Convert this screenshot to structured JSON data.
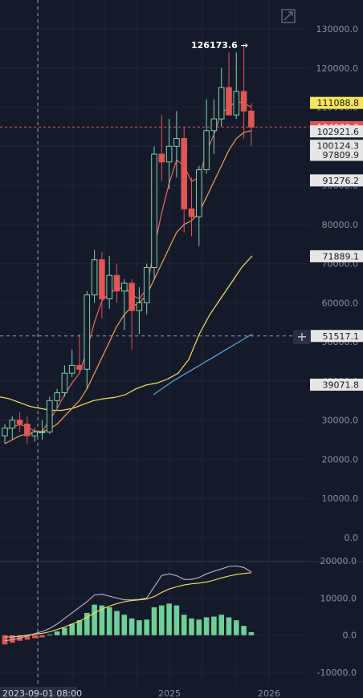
{
  "chart_data": [
    {
      "type": "candlestick",
      "timeframe_note": "",
      "ylim": [
        0,
        135000
      ],
      "y_ticks": [
        "130000.0",
        "120000.0",
        "110000.0",
        "100000.0",
        "90000.0",
        "80000.0",
        "70000.0",
        "60000.0",
        "50000.0",
        "40000.0",
        "30000.0",
        "20000.0",
        "10000.0",
        "0.0"
      ],
      "x_ticks": [
        "2025",
        "2026"
      ],
      "crosshair_date": "2023-09-01 08:00",
      "high_annotation": "126173.6 →",
      "candles": [
        {
          "o": 26000,
          "h": 29000,
          "l": 24000,
          "c": 28000
        },
        {
          "o": 28000,
          "h": 31000,
          "l": 25000,
          "c": 30000
        },
        {
          "o": 30000,
          "h": 32000,
          "l": 27000,
          "c": 29000
        },
        {
          "o": 29000,
          "h": 31000,
          "l": 24000,
          "c": 26000
        },
        {
          "o": 26000,
          "h": 28000,
          "l": 24500,
          "c": 27000
        },
        {
          "o": 27000,
          "h": 30000,
          "l": 25000,
          "c": 27000
        },
        {
          "o": 27000,
          "h": 36000,
          "l": 26500,
          "c": 35000
        },
        {
          "o": 35000,
          "h": 38000,
          "l": 33000,
          "c": 37000
        },
        {
          "o": 37000,
          "h": 44000,
          "l": 36000,
          "c": 42000
        },
        {
          "o": 42000,
          "h": 48000,
          "l": 41000,
          "c": 44000
        },
        {
          "o": 44000,
          "h": 52000,
          "l": 42000,
          "c": 43000
        },
        {
          "o": 43000,
          "h": 63000,
          "l": 38000,
          "c": 62000
        },
        {
          "o": 62000,
          "h": 73500,
          "l": 60000,
          "c": 71000
        },
        {
          "o": 71000,
          "h": 73000,
          "l": 56000,
          "c": 61000
        },
        {
          "o": 61000,
          "h": 72000,
          "l": 58500,
          "c": 67000
        },
        {
          "o": 67000,
          "h": 70000,
          "l": 60000,
          "c": 63000
        },
        {
          "o": 63000,
          "h": 66000,
          "l": 53000,
          "c": 65000
        },
        {
          "o": 65000,
          "h": 66000,
          "l": 48000,
          "c": 58000
        },
        {
          "o": 58000,
          "h": 64000,
          "l": 52000,
          "c": 60000
        },
        {
          "o": 60000,
          "h": 70000,
          "l": 57000,
          "c": 69000
        },
        {
          "o": 69000,
          "h": 100000,
          "l": 66000,
          "c": 98000
        },
        {
          "o": 98000,
          "h": 108000,
          "l": 91000,
          "c": 96000
        },
        {
          "o": 96000,
          "h": 107000,
          "l": 89000,
          "c": 100000
        },
        {
          "o": 100000,
          "h": 109000,
          "l": 92000,
          "c": 102000
        },
        {
          "o": 102000,
          "h": 105000,
          "l": 78000,
          "c": 84000
        },
        {
          "o": 84000,
          "h": 92000,
          "l": 77000,
          "c": 82000
        },
        {
          "o": 82000,
          "h": 95000,
          "l": 74500,
          "c": 94000
        },
        {
          "o": 94000,
          "h": 112000,
          "l": 93000,
          "c": 104000
        },
        {
          "o": 104000,
          "h": 112000,
          "l": 98000,
          "c": 107000
        },
        {
          "o": 107000,
          "h": 120000,
          "l": 105000,
          "c": 115000
        },
        {
          "o": 115000,
          "h": 124000,
          "l": 108000,
          "c": 108000
        },
        {
          "o": 108000,
          "h": 124000,
          "l": 107000,
          "c": 114000
        },
        {
          "o": 114000,
          "h": 126173.6,
          "l": 102000,
          "c": 109000
        },
        {
          "o": 109000,
          "h": 111000,
          "l": 100000,
          "c": 104900
        }
      ],
      "ma_lines": [
        {
          "color": "#e8695a",
          "values": [
            27500,
            28200,
            28900,
            28300,
            27200,
            27100,
            30000,
            33000,
            36500,
            39500,
            42000,
            48000,
            55000,
            60500,
            62500,
            63500,
            64000,
            62000,
            61000,
            63500,
            74000,
            83000,
            90500,
            96500,
            95000,
            91000,
            92000,
            98500,
            103000,
            108500,
            110000,
            111500,
            111000,
            110000
          ]
        },
        {
          "color": "#f0a050",
          "values": [
            24000,
            25000,
            26000,
            26500,
            26800,
            27000,
            27800,
            29000,
            31000,
            33000,
            35000,
            38000,
            42000,
            46000,
            50000,
            54000,
            57000,
            59000,
            60000,
            62000,
            66000,
            70000,
            74000,
            78000,
            80000,
            81000,
            83000,
            87000,
            91000,
            95000,
            99000,
            102000,
            103500,
            104000
          ]
        }
      ],
      "ma_yellow": {
        "color": "#f5e35b",
        "x_start": 0,
        "values": [
          36000,
          35500,
          34500,
          33500,
          33000,
          32500,
          32500,
          33000,
          34000,
          35000,
          35500,
          35800,
          36500,
          38000,
          39000,
          39500,
          40500,
          42000,
          45500,
          52000,
          57000,
          61000,
          65000,
          69000,
          72000
        ]
      },
      "ma_blue": {
        "color": "#5aa6e0",
        "x_start": 18,
        "values": [
          36500,
          40000,
          43000,
          46000,
          49000,
          52000
        ]
      },
      "price_tags": [
        {
          "label": "111088.8",
          "value": 111088.8,
          "bg": "#f5e35b",
          "fg": "#1a1a1a"
        },
        {
          "label": "104900.3",
          "value": 104900.3,
          "bg": "#e05555",
          "fg": "#ffffff"
        },
        {
          "label": "102921.6",
          "value": 102921.6,
          "bg": "#e6e6e6",
          "fg": "#1a1a1a"
        },
        {
          "label": "100124.3",
          "value": 100124.3,
          "bg": "#e6e6e6",
          "fg": "#1a1a1a"
        },
        {
          "label": "97809.9",
          "value": 97809.9,
          "bg": "#e6e6e6",
          "fg": "#1a1a1a"
        },
        {
          "label": "91276.2",
          "value": 91276.2,
          "bg": "#e6e6e6",
          "fg": "#1a1a1a"
        },
        {
          "label": "71889.1",
          "value": 71889.1,
          "bg": "#e6e6e6",
          "fg": "#1a1a1a"
        },
        {
          "label": "51517.1",
          "value": 51517.1,
          "bg": "#e6e6e6",
          "fg": "#1a1a1a"
        },
        {
          "label": "39071.8",
          "value": 39071.8,
          "bg": "#e6e6e6",
          "fg": "#1a1a1a"
        }
      ]
    },
    {
      "type": "bar",
      "ylim": [
        -12000,
        22000
      ],
      "y_ticks": [
        "20000.0",
        "10000.0",
        "0.0",
        "-10000.0"
      ],
      "histogram": [
        -2500,
        -2000,
        -1500,
        -1200,
        -800,
        -600,
        200,
        1000,
        2000,
        3000,
        4000,
        6000,
        8200,
        8000,
        7500,
        6500,
        5500,
        4500,
        4000,
        4200,
        7500,
        8000,
        8500,
        8000,
        5500,
        4500,
        4200,
        4800,
        5000,
        5500,
        4800,
        4000,
        2500,
        800
      ],
      "macd_line": {
        "color": "#b9b6d8",
        "values": [
          -1500,
          -1200,
          -800,
          -200,
          400,
          1000,
          1800,
          3000,
          4500,
          6000,
          7500,
          9000,
          10800,
          11000,
          10500,
          10000,
          9500,
          9500,
          9600,
          10000,
          13000,
          16000,
          16500,
          16000,
          15000,
          15000,
          15500,
          16500,
          17200,
          17800,
          18500,
          18600,
          18200,
          17000
        ]
      },
      "signal_line": {
        "color": "#f5e35b",
        "values": [
          -500,
          -500,
          -300,
          0,
          300,
          500,
          900,
          1500,
          2200,
          3000,
          3800,
          4800,
          6000,
          7000,
          7800,
          8500,
          9000,
          9300,
          9500,
          9700,
          10400,
          11500,
          12400,
          13000,
          13500,
          13800,
          14000,
          14300,
          14800,
          15400,
          15900,
          16300,
          16600,
          16800
        ]
      }
    }
  ]
}
